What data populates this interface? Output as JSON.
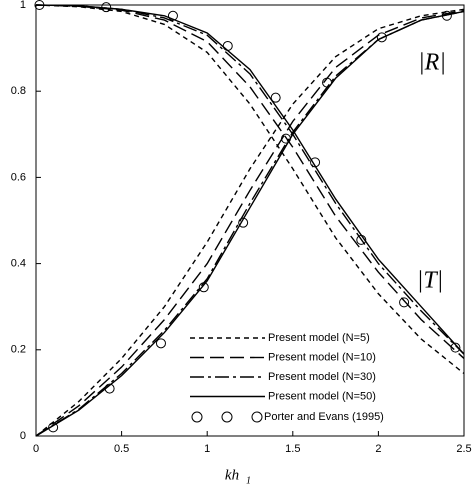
{
  "chart_data": {
    "type": "line",
    "xlabel": "kh",
    "xlabel_sub": "1",
    "annotations": [
      "|R|",
      "|T|"
    ],
    "x": [
      0,
      0.25,
      0.5,
      0.75,
      1.0,
      1.25,
      1.5,
      1.75,
      2.0,
      2.25,
      2.5
    ],
    "xlim": [
      0,
      2.5
    ],
    "ylim": [
      0,
      1
    ],
    "xticks": [
      0,
      0.5,
      1,
      1.5,
      2,
      2.5
    ],
    "yticks": [
      0,
      0.2,
      0.4,
      0.6,
      0.8,
      1
    ],
    "series": [
      {
        "name": "Present model (N=5)",
        "color": "#000000",
        "dash": "5,4",
        "values": [
          1,
          0.996,
          0.985,
          0.955,
          0.89,
          0.77,
          0.62,
          0.46,
          0.33,
          0.225,
          0.145
        ],
        "t_values": [
          0,
          0.08,
          0.18,
          0.3,
          0.45,
          0.62,
          0.77,
          0.88,
          0.945,
          0.975,
          0.99
        ]
      },
      {
        "name": "Present model (N=10)",
        "color": "#000000",
        "dash": "14,6",
        "values": [
          1,
          0.997,
          0.988,
          0.965,
          0.915,
          0.81,
          0.67,
          0.51,
          0.38,
          0.27,
          0.18
        ],
        "t_values": [
          0,
          0.07,
          0.16,
          0.27,
          0.4,
          0.57,
          0.73,
          0.855,
          0.93,
          0.97,
          0.987
        ]
      },
      {
        "name": "Present model (N=30)",
        "color": "#000000",
        "dash": "14,4,3,4",
        "values": [
          1,
          0.998,
          0.99,
          0.97,
          0.93,
          0.84,
          0.7,
          0.54,
          0.4,
          0.29,
          0.19
        ],
        "t_values": [
          0,
          0.062,
          0.145,
          0.245,
          0.365,
          0.54,
          0.705,
          0.835,
          0.92,
          0.965,
          0.985
        ]
      },
      {
        "name": "Present model (N=50)",
        "color": "#000000",
        "dash": "",
        "values": [
          1,
          0.998,
          0.99,
          0.975,
          0.935,
          0.85,
          0.71,
          0.55,
          0.41,
          0.3,
          0.19
        ],
        "t_values": [
          0,
          0.06,
          0.14,
          0.24,
          0.36,
          0.53,
          0.7,
          0.83,
          0.92,
          0.965,
          0.985
        ]
      }
    ],
    "reference": {
      "name": "Porter and Evans (1995)",
      "r_x": [
        0.02,
        0.41,
        0.8,
        1.12,
        1.4,
        1.63,
        1.9,
        2.15,
        2.45
      ],
      "r_values": [
        1.0,
        0.995,
        0.975,
        0.905,
        0.785,
        0.635,
        0.455,
        0.31,
        0.205
      ],
      "t_x": [
        0.1,
        0.43,
        0.73,
        0.98,
        1.21,
        1.46,
        1.7,
        2.02,
        2.4
      ],
      "t_values": [
        0.02,
        0.11,
        0.215,
        0.345,
        0.495,
        0.69,
        0.82,
        0.925,
        0.975
      ]
    }
  }
}
